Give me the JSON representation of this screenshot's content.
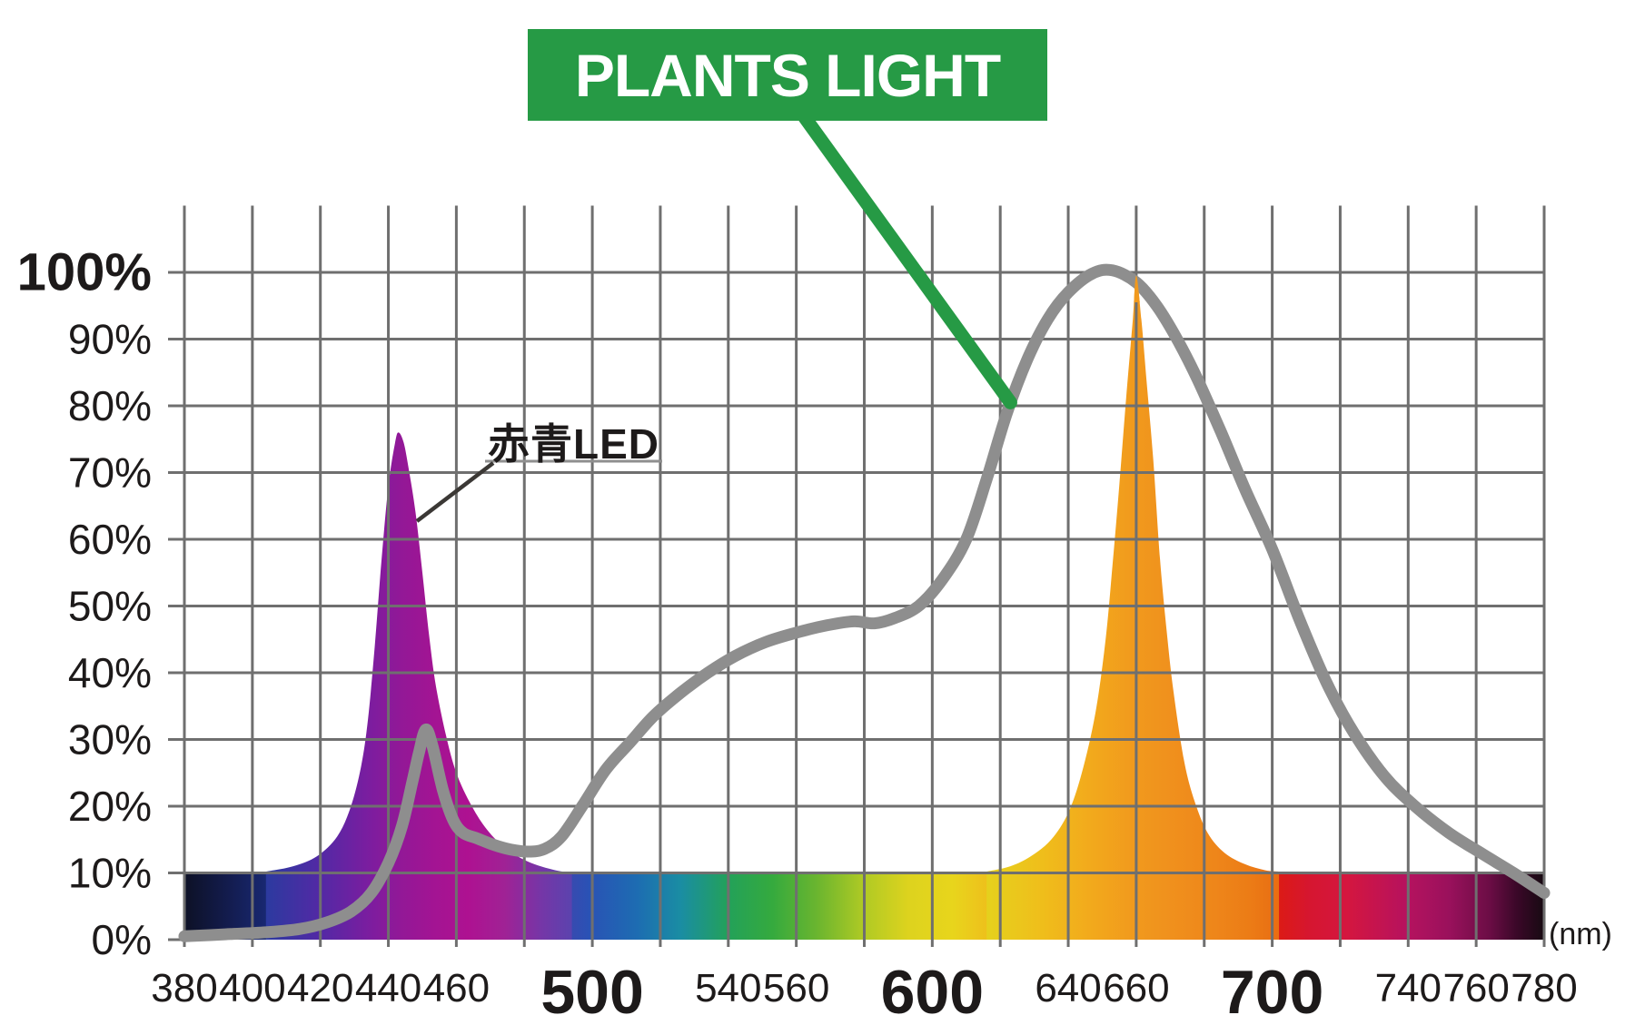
{
  "chart_data": {
    "type": "area",
    "title": "PLANTS LIGHT",
    "unit_label": "(nm)",
    "annotation": {
      "label": "赤青LED",
      "points_to_nm": 449,
      "points_to_pct": 63
    },
    "axes": {
      "x_min_nm": 380,
      "x_max_nm": 780,
      "x_gridline_step_nm": 20,
      "y_min_pct": 0,
      "y_max_pct": 110,
      "y_gridline_step_pct": 10,
      "grid": true,
      "legend": "none"
    },
    "y_ticks": [
      {
        "label": "100%",
        "pct": 100,
        "emphasis": true
      },
      {
        "label": "90%",
        "pct": 90,
        "emphasis": false
      },
      {
        "label": "80%",
        "pct": 80,
        "emphasis": false
      },
      {
        "label": "70%",
        "pct": 70,
        "emphasis": false
      },
      {
        "label": "60%",
        "pct": 60,
        "emphasis": false
      },
      {
        "label": "50%",
        "pct": 50,
        "emphasis": false
      },
      {
        "label": "40%",
        "pct": 40,
        "emphasis": false
      },
      {
        "label": "30%",
        "pct": 30,
        "emphasis": false
      },
      {
        "label": "20%",
        "pct": 20,
        "emphasis": false
      },
      {
        "label": "10%",
        "pct": 10,
        "emphasis": false
      },
      {
        "label": "0%",
        "pct": 0,
        "emphasis": false
      }
    ],
    "x_ticks": [
      {
        "label": "380",
        "nm": 380,
        "emphasis": false
      },
      {
        "label": "400",
        "nm": 400,
        "emphasis": false
      },
      {
        "label": "420",
        "nm": 420,
        "emphasis": false
      },
      {
        "label": "440",
        "nm": 440,
        "emphasis": false
      },
      {
        "label": "460",
        "nm": 460,
        "emphasis": false
      },
      {
        "label": "500",
        "nm": 500,
        "emphasis": true
      },
      {
        "label": "540",
        "nm": 540,
        "emphasis": false
      },
      {
        "label": "560",
        "nm": 560,
        "emphasis": false
      },
      {
        "label": "600",
        "nm": 600,
        "emphasis": true
      },
      {
        "label": "640",
        "nm": 640,
        "emphasis": false
      },
      {
        "label": "660",
        "nm": 660,
        "emphasis": false
      },
      {
        "label": "700",
        "nm": 700,
        "emphasis": true
      },
      {
        "label": "740",
        "nm": 740,
        "emphasis": false
      },
      {
        "label": "760",
        "nm": 760,
        "emphasis": false
      },
      {
        "label": "780",
        "nm": 780,
        "emphasis": false
      }
    ],
    "series": [
      {
        "name": "plants-light-spectrum",
        "kind": "line",
        "color": "#8e8e8e",
        "points_nm_pct": [
          [
            380,
            0.5
          ],
          [
            392,
            0.8
          ],
          [
            404,
            1.1
          ],
          [
            414,
            1.6
          ],
          [
            422,
            2.6
          ],
          [
            429,
            4.2
          ],
          [
            435,
            7
          ],
          [
            440,
            11.5
          ],
          [
            444,
            17
          ],
          [
            447,
            23.5
          ],
          [
            449,
            28
          ],
          [
            451,
            31.5
          ],
          [
            453,
            29
          ],
          [
            456,
            22.5
          ],
          [
            459,
            18
          ],
          [
            462,
            16
          ],
          [
            466,
            15.2
          ],
          [
            471,
            14.2
          ],
          [
            476,
            13.5
          ],
          [
            481,
            13.2
          ],
          [
            486,
            13.6
          ],
          [
            491,
            15.5
          ],
          [
            497,
            20
          ],
          [
            504,
            25.5
          ],
          [
            511,
            29.5
          ],
          [
            518,
            33.5
          ],
          [
            526,
            37
          ],
          [
            534,
            40
          ],
          [
            542,
            42.5
          ],
          [
            551,
            44.6
          ],
          [
            560,
            46
          ],
          [
            569,
            47.1
          ],
          [
            577,
            47.7
          ],
          [
            583,
            47.4
          ],
          [
            589,
            48.2
          ],
          [
            596,
            50
          ],
          [
            603,
            54
          ],
          [
            610,
            60
          ],
          [
            616,
            69
          ],
          [
            622,
            79
          ],
          [
            628,
            87
          ],
          [
            634,
            93
          ],
          [
            640,
            97
          ],
          [
            647,
            99.8
          ],
          [
            653,
            100.3
          ],
          [
            660,
            98.5
          ],
          [
            666,
            95
          ],
          [
            672,
            90
          ],
          [
            678,
            84
          ],
          [
            685,
            76
          ],
          [
            692,
            67.5
          ],
          [
            700,
            58.5
          ],
          [
            708,
            48
          ],
          [
            716,
            38.5
          ],
          [
            724,
            31
          ],
          [
            733,
            24.5
          ],
          [
            742,
            20
          ],
          [
            752,
            16
          ],
          [
            762,
            12.8
          ],
          [
            771,
            10
          ],
          [
            780,
            7
          ]
        ]
      },
      {
        "name": "blue-led-peak",
        "kind": "area",
        "peak_nm": 443,
        "peak_pct": 76,
        "gradient": [
          [
            0,
            "#2c3a9f"
          ],
          [
            0.18,
            "#5329a5"
          ],
          [
            0.34,
            "#7c1d9f"
          ],
          [
            0.44,
            "#921897"
          ],
          [
            0.55,
            "#a31493"
          ],
          [
            0.66,
            "#ae1191"
          ],
          [
            0.78,
            "#a02295"
          ],
          [
            0.9,
            "#7536a7"
          ],
          [
            1,
            "#5b43ae"
          ]
        ],
        "points_nm_pct": [
          [
            404,
            10.2
          ],
          [
            412,
            11
          ],
          [
            419,
            12.5
          ],
          [
            425,
            15.5
          ],
          [
            429,
            20
          ],
          [
            432,
            26
          ],
          [
            434,
            33
          ],
          [
            436,
            44
          ],
          [
            438,
            57
          ],
          [
            440,
            68
          ],
          [
            442,
            74.5
          ],
          [
            443,
            76
          ],
          [
            444.5,
            74.5
          ],
          [
            446,
            70.5
          ],
          [
            448,
            64
          ],
          [
            450,
            55
          ],
          [
            452,
            45.5
          ],
          [
            454,
            38
          ],
          [
            457,
            30.5
          ],
          [
            460,
            25
          ],
          [
            464,
            20.5
          ],
          [
            469,
            16.5
          ],
          [
            475,
            13.5
          ],
          [
            482,
            11.5
          ],
          [
            490,
            10.3
          ],
          [
            494,
            10.1
          ]
        ]
      },
      {
        "name": "red-led-peak",
        "kind": "area",
        "peak_nm": 660,
        "peak_pct": 99.5,
        "gradient": [
          [
            0,
            "#e5d11d"
          ],
          [
            0.18,
            "#efbf1b"
          ],
          [
            0.35,
            "#f2aa1c"
          ],
          [
            0.5,
            "#f19a1d"
          ],
          [
            0.62,
            "#f0911d"
          ],
          [
            0.78,
            "#ee861a"
          ],
          [
            0.9,
            "#ec7c16"
          ],
          [
            1,
            "#e96d12"
          ]
        ],
        "points_nm_pct": [
          [
            616,
            10.2
          ],
          [
            623,
            11
          ],
          [
            629,
            12.5
          ],
          [
            635,
            15
          ],
          [
            640,
            19
          ],
          [
            644,
            25
          ],
          [
            648,
            34
          ],
          [
            651,
            45
          ],
          [
            653,
            56
          ],
          [
            655,
            68
          ],
          [
            657,
            81
          ],
          [
            659,
            93
          ],
          [
            660,
            99.5
          ],
          [
            661.5,
            93
          ],
          [
            663,
            84
          ],
          [
            665,
            72
          ],
          [
            667,
            57
          ],
          [
            669,
            46
          ],
          [
            671,
            37
          ],
          [
            674,
            27
          ],
          [
            677,
            21
          ],
          [
            681,
            16
          ],
          [
            686,
            13
          ],
          [
            692,
            11.3
          ],
          [
            698,
            10.4
          ],
          [
            702,
            10.2
          ]
        ]
      }
    ],
    "spectrum_bar": {
      "from_pct": 0,
      "to_pct": 10,
      "stops": [
        [
          380,
          "#0d1126"
        ],
        [
          393,
          "#131c4e"
        ],
        [
          406,
          "#192a78"
        ],
        [
          420,
          "#2337a3"
        ],
        [
          433,
          "#4a2ba6"
        ],
        [
          444,
          "#8c1a97"
        ],
        [
          456,
          "#a91492"
        ],
        [
          468,
          "#b01190"
        ],
        [
          480,
          "#7133a6"
        ],
        [
          486,
          "#4b3fa8"
        ],
        [
          499,
          "#2a52b5"
        ],
        [
          513,
          "#1d6cb2"
        ],
        [
          526,
          "#1a8da3"
        ],
        [
          540,
          "#23a159"
        ],
        [
          553,
          "#35aa3e"
        ],
        [
          566,
          "#6ab52f"
        ],
        [
          580,
          "#b0ca24"
        ],
        [
          593,
          "#ddd31e"
        ],
        [
          606,
          "#e8d51c"
        ],
        [
          620,
          "#f0b81b"
        ],
        [
          633,
          "#f2a01d"
        ],
        [
          647,
          "#f0941d"
        ],
        [
          660,
          "#ee8c1b"
        ],
        [
          673,
          "#ec7b15"
        ],
        [
          686,
          "#e63b10"
        ],
        [
          700,
          "#dd1b10"
        ],
        [
          711,
          "#d61630"
        ],
        [
          722,
          "#d4163f"
        ],
        [
          740,
          "#b5125f"
        ],
        [
          752,
          "#9a115c"
        ],
        [
          764,
          "#6b0d45"
        ],
        [
          772,
          "#3a0828"
        ],
        [
          780,
          "#170a12"
        ]
      ]
    },
    "colors": {
      "grid": "#6f6f6f",
      "curve": "#8e8e8e",
      "accent_green": "#269a45",
      "text": "#1d1a1a",
      "annotation_line": "#3b3835",
      "annotation_underline": "#8f8f8f",
      "banner_text": "#ffffff"
    }
  }
}
